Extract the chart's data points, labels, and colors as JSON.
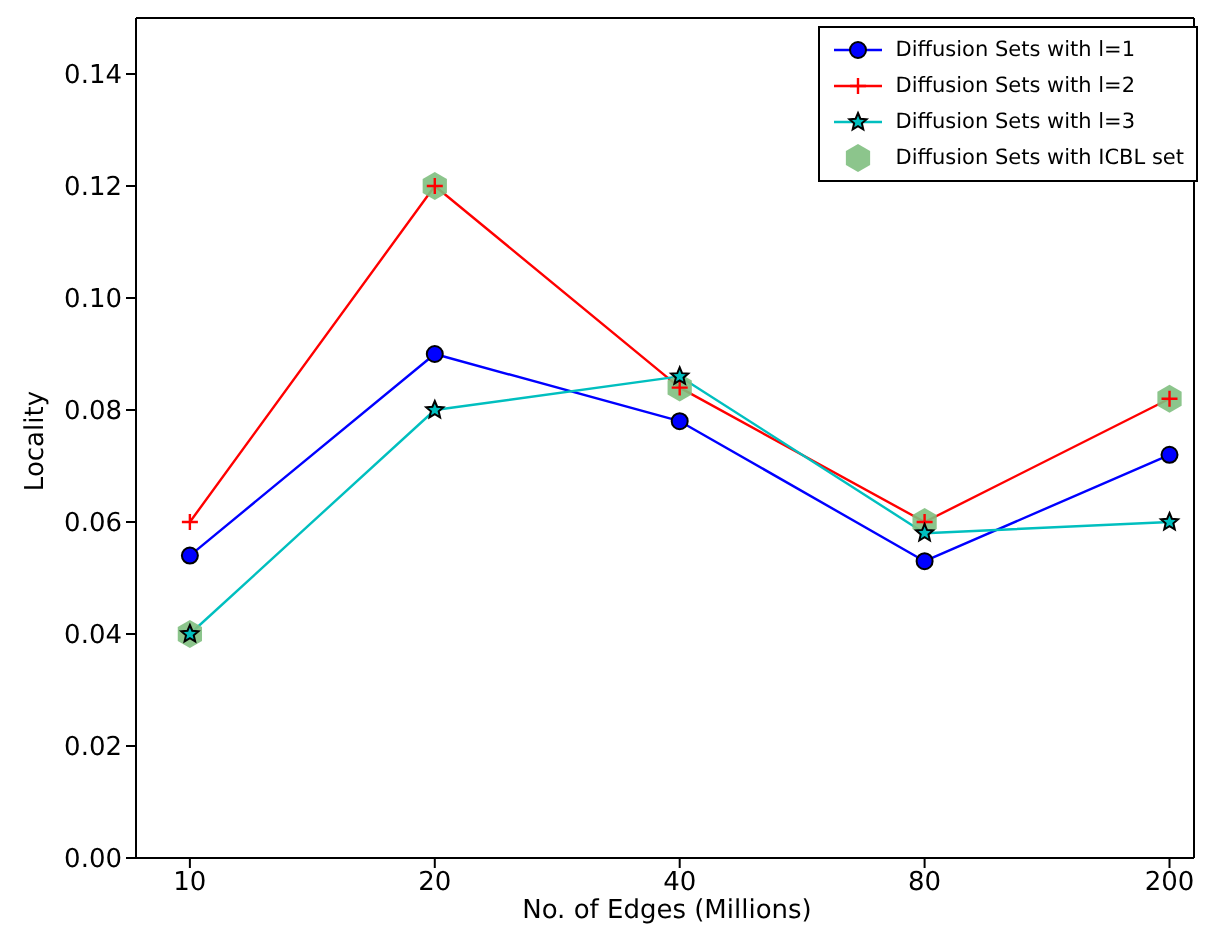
{
  "chart_data": {
    "type": "line",
    "xlabel": "No. of Edges (Millions)",
    "ylabel": "Locality",
    "categories": [
      "10",
      "20",
      "40",
      "80",
      "200"
    ],
    "series": [
      {
        "name": "Diffusion Sets with l=1",
        "color": "#0000ff",
        "marker": "circle",
        "values": [
          0.054,
          0.09,
          0.078,
          0.053,
          0.072
        ]
      },
      {
        "name": "Diffusion Sets with l=2",
        "color": "#ff0000",
        "marker": "cross",
        "values": [
          0.06,
          0.12,
          0.084,
          0.06,
          0.082
        ]
      },
      {
        "name": "Diffusion Sets with l=3",
        "color": "#00bfbf",
        "marker": "star",
        "values": [
          0.04,
          0.08,
          0.086,
          0.058,
          0.06
        ]
      },
      {
        "name": "Diffusion Sets with ICBL set",
        "type": "scatter",
        "color": "#7fbf7f",
        "values": [
          0.04,
          0.12,
          0.084,
          0.06,
          0.082
        ]
      }
    ],
    "ylim": [
      0,
      0.15
    ],
    "yticks": [
      {
        "value": 0,
        "label": "0.00"
      },
      {
        "value": 0.02,
        "label": "0.02"
      },
      {
        "value": 0.04,
        "label": "0.04"
      },
      {
        "value": 0.06,
        "label": "0.06"
      },
      {
        "value": 0.08,
        "label": "0.08"
      },
      {
        "value": 0.1,
        "label": "0.10"
      },
      {
        "value": 0.12,
        "label": "0.12"
      },
      {
        "value": 0.14,
        "label": "0.14"
      }
    ],
    "grid": false,
    "legend": "top right"
  }
}
